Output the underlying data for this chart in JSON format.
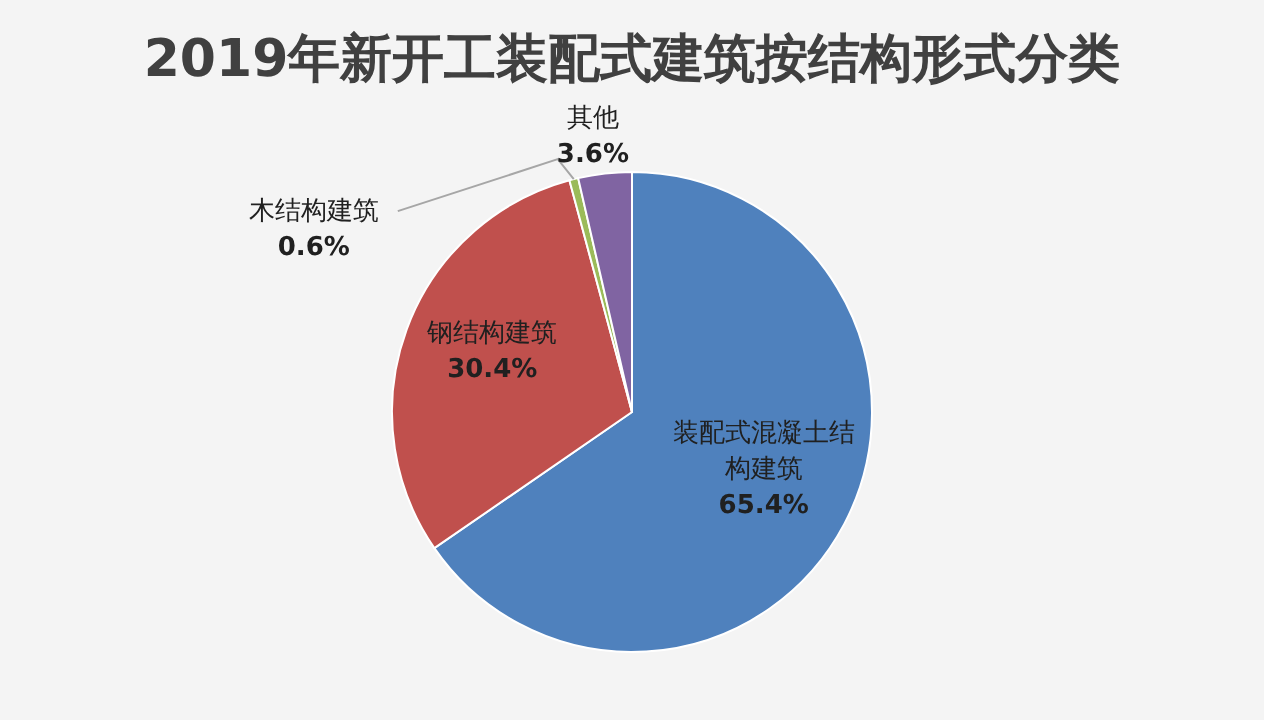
{
  "chart_data": {
    "type": "pie",
    "title": "2019年新开工装配式建筑按结构形式分类",
    "categories": [
      "装配式混凝土结构建筑",
      "钢结构建筑",
      "木结构建筑",
      "其他"
    ],
    "values": [
      65.4,
      30.4,
      0.6,
      3.6
    ],
    "value_labels": [
      "65.4%",
      "30.4%",
      "0.6%",
      "3.6%"
    ],
    "colors": [
      "#4f81bd",
      "#c0504d",
      "#9bbb59",
      "#8064a2"
    ]
  }
}
